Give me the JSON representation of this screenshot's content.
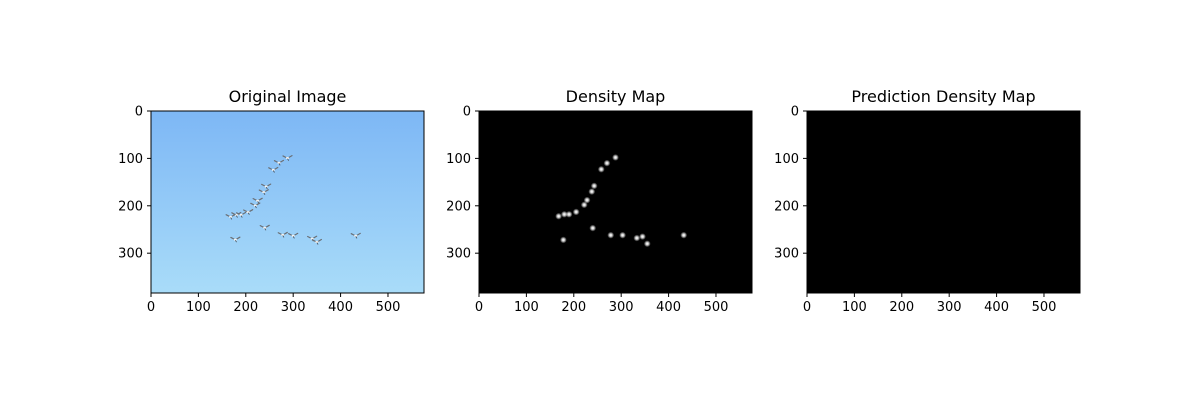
{
  "chart_data": [
    {
      "type": "image",
      "title": "Original Image",
      "image": "sky-with-bird-flock",
      "background_top": "#7db7f5",
      "background_bottom": "#a9dcf9",
      "xlim": [
        0,
        576
      ],
      "ylim": [
        384,
        0
      ],
      "xticks": [
        0,
        100,
        200,
        300,
        400,
        500
      ],
      "yticks": [
        0,
        100,
        200,
        300
      ],
      "birds": [
        [
          288,
          98
        ],
        [
          270,
          108
        ],
        [
          258,
          123
        ],
        [
          243,
          158
        ],
        [
          238,
          170
        ],
        [
          225,
          188
        ],
        [
          220,
          198
        ],
        [
          205,
          212
        ],
        [
          190,
          218
        ],
        [
          180,
          218
        ],
        [
          168,
          222
        ],
        [
          178,
          270
        ],
        [
          240,
          245
        ],
        [
          278,
          260
        ],
        [
          300,
          262
        ],
        [
          340,
          268
        ],
        [
          350,
          275
        ],
        [
          432,
          262
        ]
      ]
    },
    {
      "type": "heatmap",
      "title": "Density Map",
      "background": "#000000",
      "point_color": "#ffffff",
      "xlim": [
        0,
        576
      ],
      "ylim": [
        384,
        0
      ],
      "xticks": [
        0,
        100,
        200,
        300,
        400,
        500
      ],
      "yticks": [
        0,
        100,
        200,
        300
      ],
      "points": [
        [
          288,
          98
        ],
        [
          270,
          110
        ],
        [
          258,
          123
        ],
        [
          243,
          158
        ],
        [
          238,
          170
        ],
        [
          228,
          188
        ],
        [
          222,
          198
        ],
        [
          205,
          213
        ],
        [
          190,
          218
        ],
        [
          180,
          218
        ],
        [
          168,
          222
        ],
        [
          178,
          272
        ],
        [
          240,
          247
        ],
        [
          278,
          262
        ],
        [
          303,
          262
        ],
        [
          333,
          268
        ],
        [
          345,
          265
        ],
        [
          355,
          280
        ],
        [
          432,
          262
        ]
      ]
    },
    {
      "type": "heatmap",
      "title": "Prediction Density Map",
      "background": "#000000",
      "xlim": [
        0,
        576
      ],
      "ylim": [
        384,
        0
      ],
      "xticks": [
        0,
        100,
        200,
        300,
        400,
        500
      ],
      "yticks": [
        0,
        100,
        200,
        300
      ],
      "points": []
    }
  ]
}
